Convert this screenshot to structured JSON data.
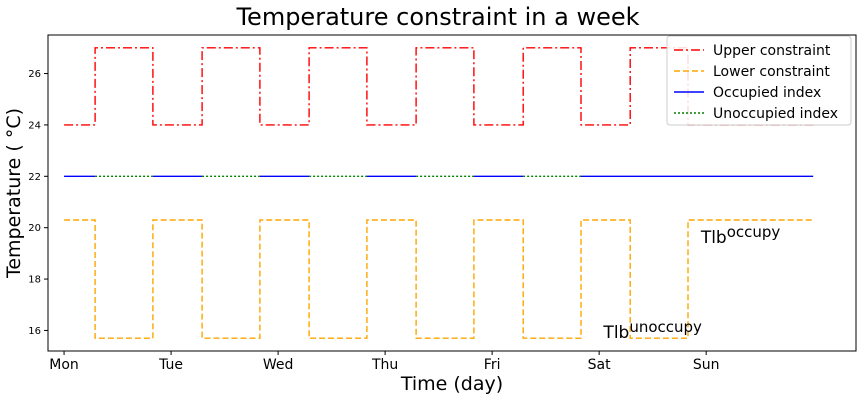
{
  "chart_data": {
    "type": "line",
    "title": "Temperature constraint in a week",
    "xlabel": "Time (day)",
    "ylabel": "Temperature ( °C)",
    "xlim": [
      -0.15,
      7.4
    ],
    "ylim": [
      15.2,
      27.5
    ],
    "xticks": [
      0,
      1,
      2,
      3,
      4,
      5,
      6
    ],
    "xtick_labels": [
      "Mon",
      "Tue",
      "Wed",
      "Thu",
      "Fri",
      "Sat",
      "Sun"
    ],
    "yticks": [
      16,
      18,
      20,
      22,
      24,
      26
    ],
    "ytick_labels": [
      "16",
      "18",
      "20",
      "22",
      "24",
      "26"
    ],
    "grid": false,
    "legend_position": "top-right",
    "series": [
      {
        "name": "Upper constraint",
        "color": "#ff0000",
        "style": "dashdot",
        "x": [
          0,
          0.29,
          0.29,
          0.83,
          0.83,
          1.29,
          1.29,
          1.83,
          1.83,
          2.29,
          2.29,
          2.83,
          2.83,
          3.29,
          3.29,
          3.83,
          3.83,
          4.29,
          4.29,
          4.83,
          4.83,
          5.29,
          5.29,
          5.83,
          5.83,
          7.0
        ],
        "values": [
          24,
          24,
          27,
          27,
          24,
          24,
          27,
          27,
          24,
          24,
          27,
          27,
          24,
          24,
          27,
          27,
          24,
          24,
          27,
          27,
          24,
          24,
          27,
          27,
          24,
          24
        ]
      },
      {
        "name": "Lower constraint",
        "color": "#ffa500",
        "style": "dashed",
        "x": [
          0,
          0.29,
          0.29,
          0.83,
          0.83,
          1.29,
          1.29,
          1.83,
          1.83,
          2.29,
          2.29,
          2.83,
          2.83,
          3.29,
          3.29,
          3.83,
          3.83,
          4.29,
          4.29,
          4.83,
          4.83,
          5.29,
          5.29,
          5.83,
          5.83,
          7.0
        ],
        "values": [
          20.3,
          20.3,
          15.7,
          15.7,
          20.3,
          20.3,
          15.7,
          15.7,
          20.3,
          20.3,
          15.7,
          15.7,
          20.3,
          20.3,
          15.7,
          15.7,
          20.3,
          20.3,
          15.7,
          15.7,
          20.3,
          20.3,
          15.7,
          15.7,
          20.3,
          20.3
        ]
      },
      {
        "name": "Occupied index",
        "color": "#0000ff",
        "style": "solid",
        "segments": [
          [
            0,
            0.29
          ],
          [
            0.83,
            1.29
          ],
          [
            1.83,
            2.29
          ],
          [
            2.83,
            3.29
          ],
          [
            3.83,
            4.29
          ],
          [
            4.83,
            7.0
          ]
        ],
        "value": 22
      },
      {
        "name": "Unoccupied index",
        "color": "#008000",
        "style": "dotted",
        "segments": [
          [
            0.29,
            0.83
          ],
          [
            1.29,
            1.83
          ],
          [
            2.29,
            2.83
          ],
          [
            3.29,
            3.83
          ],
          [
            4.29,
            4.83
          ]
        ],
        "value": 22
      }
    ],
    "annotations": [
      {
        "base": "T",
        "sub": "lb",
        "sup": "occupy",
        "x": 5.95,
        "y": 19.4
      },
      {
        "base": "T",
        "sub": "lb",
        "sup": "unoccupy",
        "x": 5.04,
        "y": 15.7
      }
    ]
  }
}
